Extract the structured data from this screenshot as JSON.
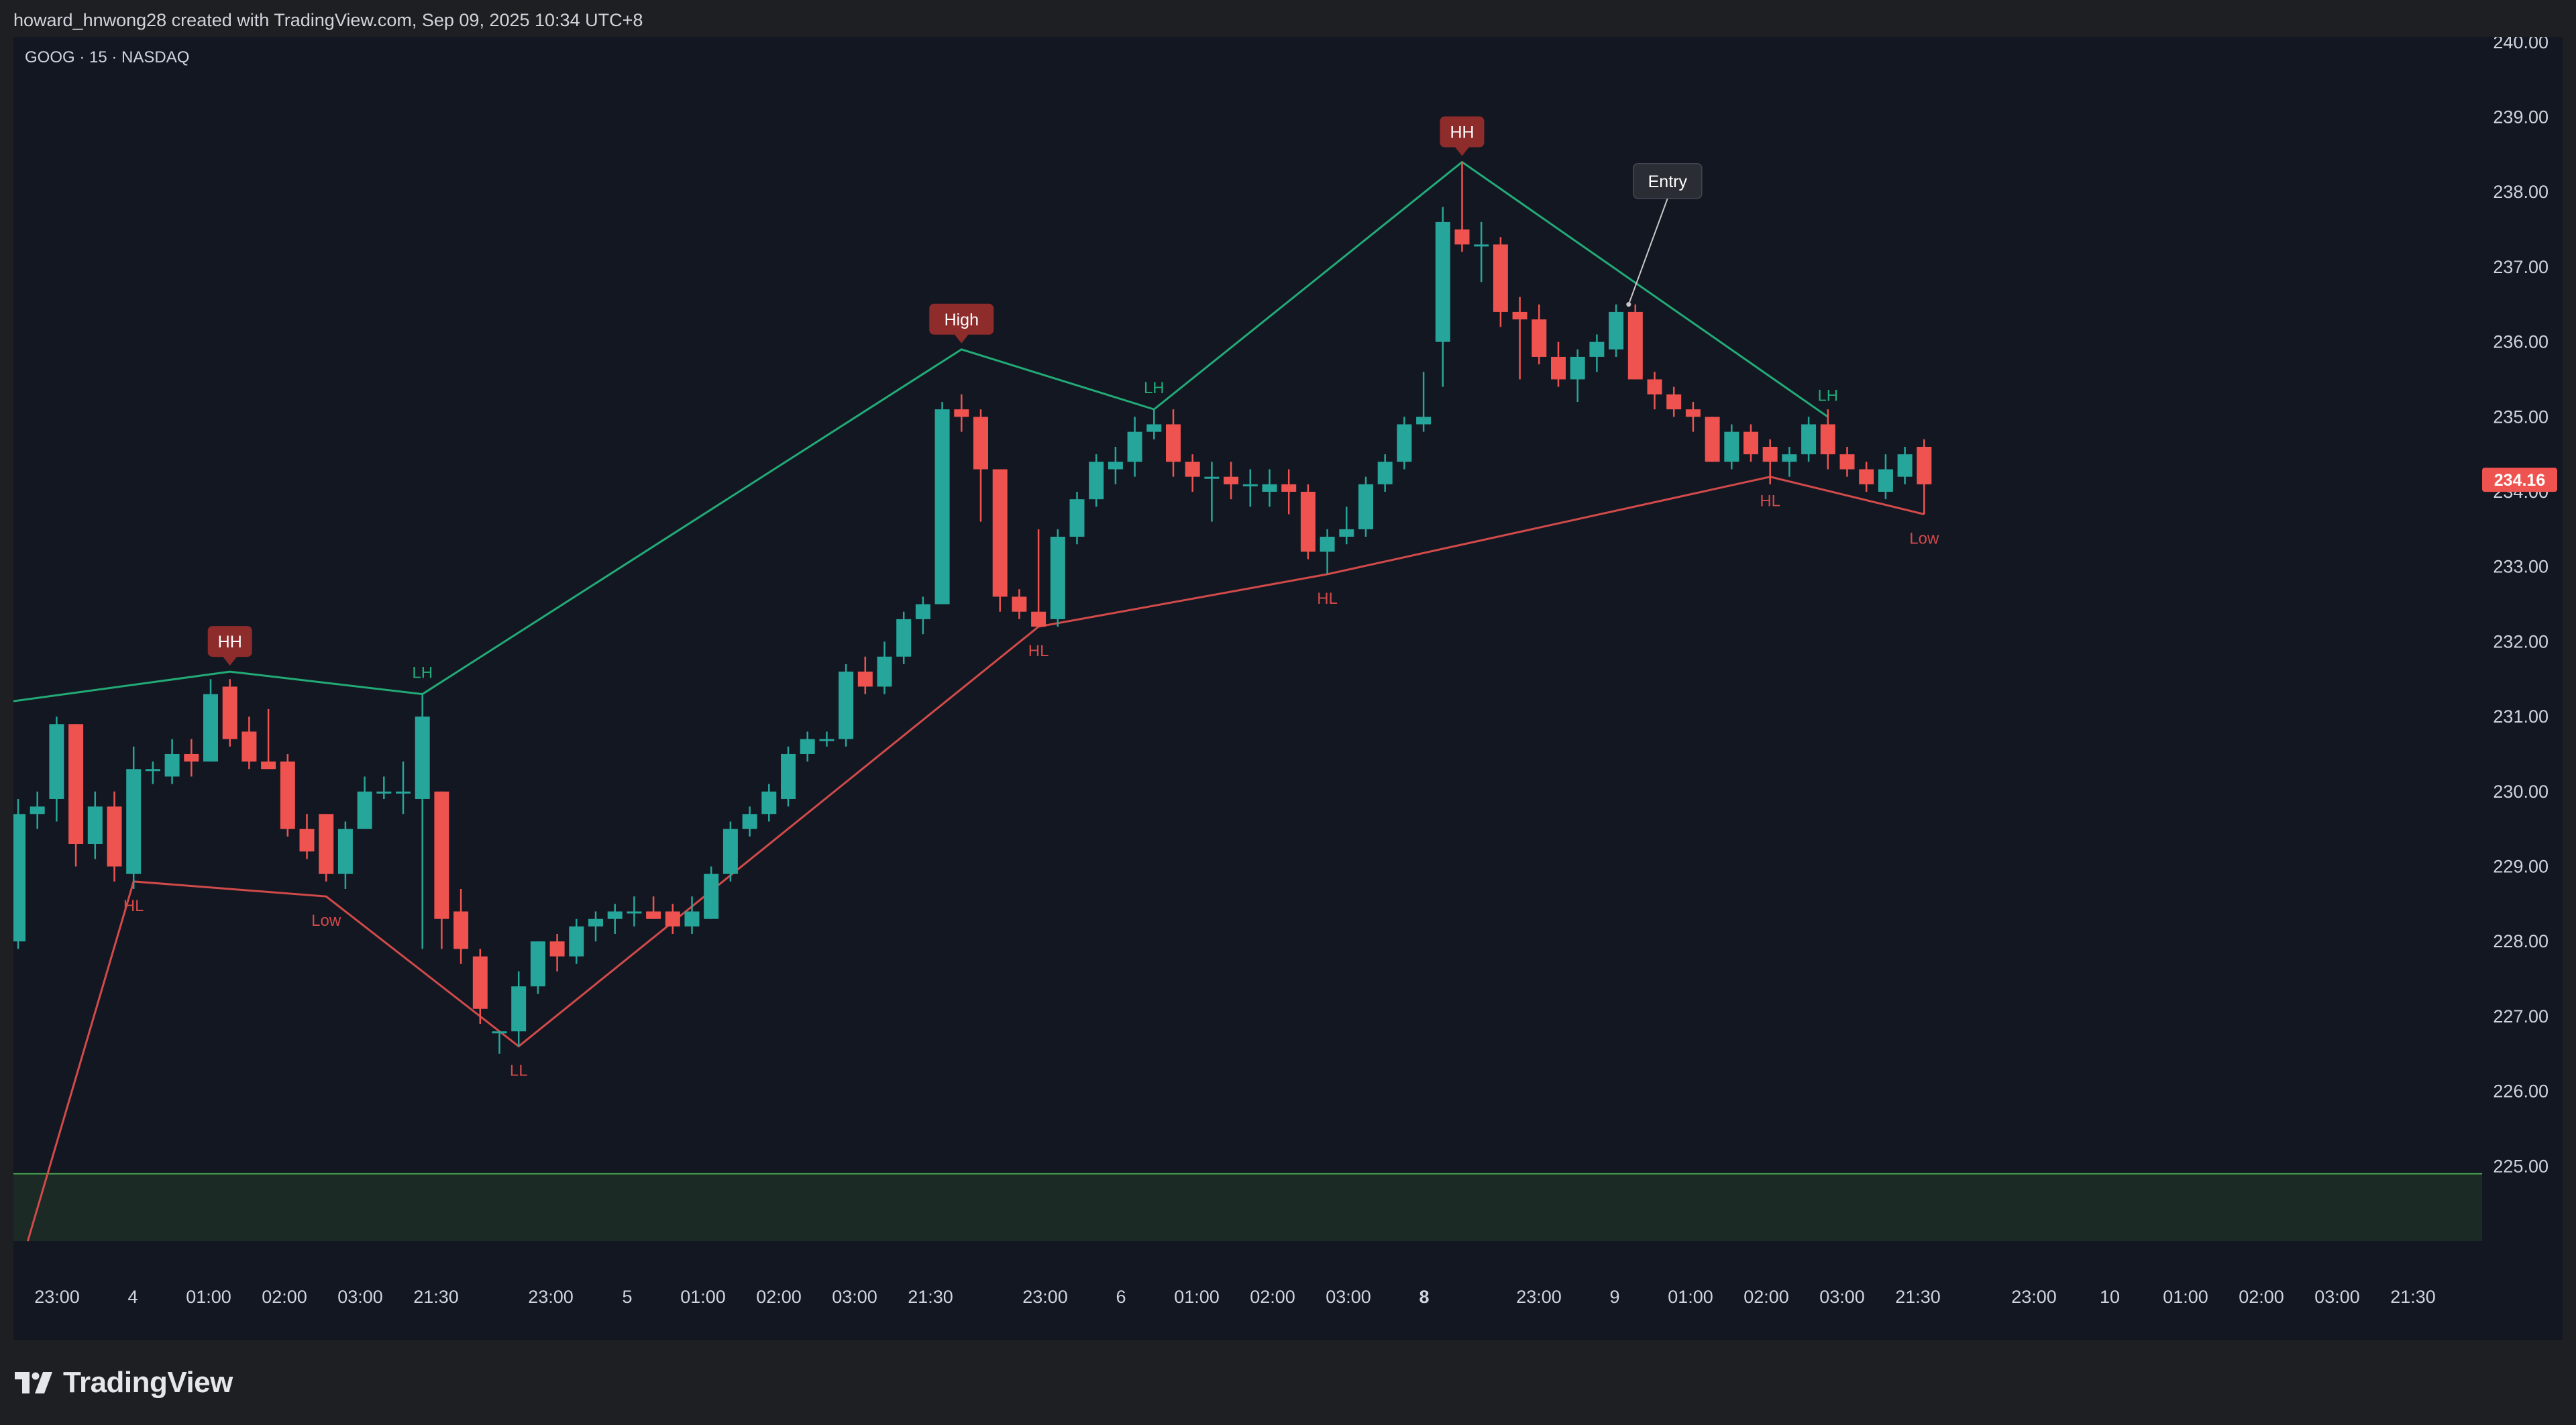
{
  "header": {
    "attribution": "howard_hnwong28 created with TradingView.com, Sep 09, 2025 10:34 UTC+8"
  },
  "symbol": {
    "label": "GOOG · 15 · NASDAQ"
  },
  "footer": {
    "brand": "TradingView",
    "logo_icon": "tradingview-logo-icon"
  },
  "colors": {
    "background": "#131722",
    "frame": "#1e1f22",
    "up": "#26a69a",
    "down": "#ef5350",
    "swing_high_line": "#22ab76",
    "swing_low_line": "#d24a4a",
    "flag": "#8e2b2b",
    "zone_fill": "#1b2a24",
    "zone_line": "#4caf50",
    "text": "#d1d4dc"
  },
  "price_axis": {
    "labels": [
      "240.00",
      "239.00",
      "238.00",
      "237.00",
      "236.00",
      "235.00",
      "234.00",
      "233.00",
      "232.00",
      "231.00",
      "230.00",
      "229.00",
      "228.00",
      "227.00",
      "226.00",
      "225.00"
    ],
    "last_price": "234.16"
  },
  "time_axis": {
    "labels": [
      "23:00",
      "4",
      "01:00",
      "02:00",
      "03:00",
      "21:30",
      "23:00",
      "5",
      "01:00",
      "02:00",
      "03:00",
      "21:30",
      "23:00",
      "6",
      "01:00",
      "02:00",
      "03:00",
      "8",
      "23:00",
      "9",
      "01:00",
      "02:00",
      "03:00",
      "21:30",
      "23:00",
      "10",
      "01:00",
      "02:00",
      "03:00",
      "21:30"
    ],
    "bold": [
      "8"
    ]
  },
  "chart_data": {
    "type": "candlestick",
    "symbol": "GOOG",
    "interval": "15",
    "exchange": "NASDAQ",
    "ylim": [
      224.0,
      240.8
    ],
    "candles": [
      {
        "o": 228.0,
        "h": 229.9,
        "l": 227.9,
        "c": 229.7
      },
      {
        "o": 229.7,
        "h": 230.0,
        "l": 229.5,
        "c": 229.8
      },
      {
        "o": 229.9,
        "h": 231.0,
        "l": 229.6,
        "c": 230.9
      },
      {
        "o": 230.9,
        "h": 230.9,
        "l": 229.0,
        "c": 229.3
      },
      {
        "o": 229.3,
        "h": 230.0,
        "l": 229.1,
        "c": 229.8
      },
      {
        "o": 229.8,
        "h": 230.0,
        "l": 228.8,
        "c": 229.0
      },
      {
        "o": 228.9,
        "h": 230.6,
        "l": 228.7,
        "c": 230.3
      },
      {
        "o": 230.3,
        "h": 230.4,
        "l": 230.1,
        "c": 230.3
      },
      {
        "o": 230.2,
        "h": 230.7,
        "l": 230.1,
        "c": 230.5
      },
      {
        "o": 230.5,
        "h": 230.7,
        "l": 230.2,
        "c": 230.4
      },
      {
        "o": 230.4,
        "h": 231.5,
        "l": 230.4,
        "c": 231.3
      },
      {
        "o": 231.4,
        "h": 231.5,
        "l": 230.6,
        "c": 230.7
      },
      {
        "o": 230.8,
        "h": 231.0,
        "l": 230.3,
        "c": 230.4
      },
      {
        "o": 230.4,
        "h": 231.1,
        "l": 230.3,
        "c": 230.3
      },
      {
        "o": 230.4,
        "h": 230.5,
        "l": 229.4,
        "c": 229.5
      },
      {
        "o": 229.5,
        "h": 229.7,
        "l": 229.1,
        "c": 229.2
      },
      {
        "o": 229.7,
        "h": 229.7,
        "l": 228.8,
        "c": 228.9
      },
      {
        "o": 228.9,
        "h": 229.6,
        "l": 228.7,
        "c": 229.5
      },
      {
        "o": 229.5,
        "h": 230.2,
        "l": 229.5,
        "c": 230.0
      },
      {
        "o": 230.0,
        "h": 230.2,
        "l": 229.9,
        "c": 230.0
      },
      {
        "o": 230.0,
        "h": 230.4,
        "l": 229.7,
        "c": 230.0
      },
      {
        "o": 229.9,
        "h": 231.3,
        "l": 227.9,
        "c": 231.0
      },
      {
        "o": 230.0,
        "h": 230.0,
        "l": 227.9,
        "c": 228.3
      },
      {
        "o": 228.4,
        "h": 228.7,
        "l": 227.7,
        "c": 227.9
      },
      {
        "o": 227.8,
        "h": 227.9,
        "l": 226.9,
        "c": 227.1
      },
      {
        "o": 226.8,
        "h": 226.8,
        "l": 226.5,
        "c": 226.8
      },
      {
        "o": 226.8,
        "h": 227.6,
        "l": 226.6,
        "c": 227.4
      },
      {
        "o": 227.4,
        "h": 228.0,
        "l": 227.3,
        "c": 228.0
      },
      {
        "o": 228.0,
        "h": 228.1,
        "l": 227.6,
        "c": 227.8
      },
      {
        "o": 227.8,
        "h": 228.3,
        "l": 227.7,
        "c": 228.2
      },
      {
        "o": 228.2,
        "h": 228.4,
        "l": 228.0,
        "c": 228.3
      },
      {
        "o": 228.3,
        "h": 228.5,
        "l": 228.1,
        "c": 228.4
      },
      {
        "o": 228.4,
        "h": 228.6,
        "l": 228.2,
        "c": 228.4
      },
      {
        "o": 228.4,
        "h": 228.6,
        "l": 228.3,
        "c": 228.3
      },
      {
        "o": 228.4,
        "h": 228.5,
        "l": 228.1,
        "c": 228.2
      },
      {
        "o": 228.2,
        "h": 228.6,
        "l": 228.1,
        "c": 228.4
      },
      {
        "o": 228.3,
        "h": 229.0,
        "l": 228.3,
        "c": 228.9
      },
      {
        "o": 228.9,
        "h": 229.6,
        "l": 228.8,
        "c": 229.5
      },
      {
        "o": 229.5,
        "h": 229.8,
        "l": 229.4,
        "c": 229.7
      },
      {
        "o": 229.7,
        "h": 230.1,
        "l": 229.6,
        "c": 230.0
      },
      {
        "o": 229.9,
        "h": 230.6,
        "l": 229.8,
        "c": 230.5
      },
      {
        "o": 230.5,
        "h": 230.8,
        "l": 230.4,
        "c": 230.7
      },
      {
        "o": 230.7,
        "h": 230.8,
        "l": 230.6,
        "c": 230.7
      },
      {
        "o": 230.7,
        "h": 231.7,
        "l": 230.6,
        "c": 231.6
      },
      {
        "o": 231.6,
        "h": 231.8,
        "l": 231.3,
        "c": 231.4
      },
      {
        "o": 231.4,
        "h": 232.0,
        "l": 231.3,
        "c": 231.8
      },
      {
        "o": 231.8,
        "h": 232.4,
        "l": 231.7,
        "c": 232.3
      },
      {
        "o": 232.3,
        "h": 232.6,
        "l": 232.1,
        "c": 232.5
      },
      {
        "o": 232.5,
        "h": 235.2,
        "l": 232.5,
        "c": 235.1
      },
      {
        "o": 235.1,
        "h": 235.3,
        "l": 234.8,
        "c": 235.0
      },
      {
        "o": 235.0,
        "h": 235.1,
        "l": 233.6,
        "c": 234.3
      },
      {
        "o": 234.3,
        "h": 234.3,
        "l": 232.4,
        "c": 232.6
      },
      {
        "o": 232.6,
        "h": 232.7,
        "l": 232.3,
        "c": 232.4
      },
      {
        "o": 232.4,
        "h": 233.5,
        "l": 232.3,
        "c": 232.2
      },
      {
        "o": 232.3,
        "h": 233.5,
        "l": 232.2,
        "c": 233.4
      },
      {
        "o": 233.4,
        "h": 234.0,
        "l": 233.3,
        "c": 233.9
      },
      {
        "o": 233.9,
        "h": 234.5,
        "l": 233.8,
        "c": 234.4
      },
      {
        "o": 234.3,
        "h": 234.6,
        "l": 234.1,
        "c": 234.4
      },
      {
        "o": 234.4,
        "h": 235.0,
        "l": 234.2,
        "c": 234.8
      },
      {
        "o": 234.8,
        "h": 235.1,
        "l": 234.7,
        "c": 234.9
      },
      {
        "o": 234.9,
        "h": 235.1,
        "l": 234.2,
        "c": 234.4
      },
      {
        "o": 234.4,
        "h": 234.5,
        "l": 234.0,
        "c": 234.2
      },
      {
        "o": 234.2,
        "h": 234.4,
        "l": 233.6,
        "c": 234.2
      },
      {
        "o": 234.2,
        "h": 234.4,
        "l": 233.9,
        "c": 234.1
      },
      {
        "o": 234.1,
        "h": 234.3,
        "l": 233.8,
        "c": 234.1
      },
      {
        "o": 234.0,
        "h": 234.3,
        "l": 233.8,
        "c": 234.1
      },
      {
        "o": 234.1,
        "h": 234.3,
        "l": 233.7,
        "c": 234.0
      },
      {
        "o": 234.0,
        "h": 234.1,
        "l": 233.1,
        "c": 233.2
      },
      {
        "o": 233.2,
        "h": 233.5,
        "l": 232.9,
        "c": 233.4
      },
      {
        "o": 233.4,
        "h": 233.8,
        "l": 233.3,
        "c": 233.5
      },
      {
        "o": 233.5,
        "h": 234.2,
        "l": 233.4,
        "c": 234.1
      },
      {
        "o": 234.1,
        "h": 234.5,
        "l": 234.0,
        "c": 234.4
      },
      {
        "o": 234.4,
        "h": 235.0,
        "l": 234.3,
        "c": 234.9
      },
      {
        "o": 234.9,
        "h": 235.6,
        "l": 234.8,
        "c": 235.0
      },
      {
        "o": 236.0,
        "h": 237.8,
        "l": 235.4,
        "c": 237.6
      },
      {
        "o": 237.5,
        "h": 238.4,
        "l": 237.2,
        "c": 237.3
      },
      {
        "o": 237.3,
        "h": 237.6,
        "l": 236.8,
        "c": 237.3
      },
      {
        "o": 237.3,
        "h": 237.4,
        "l": 236.2,
        "c": 236.4
      },
      {
        "o": 236.4,
        "h": 236.6,
        "l": 235.5,
        "c": 236.3
      },
      {
        "o": 236.3,
        "h": 236.5,
        "l": 235.7,
        "c": 235.8
      },
      {
        "o": 235.8,
        "h": 236.0,
        "l": 235.4,
        "c": 235.5
      },
      {
        "o": 235.5,
        "h": 235.9,
        "l": 235.2,
        "c": 235.8
      },
      {
        "o": 235.8,
        "h": 236.1,
        "l": 235.6,
        "c": 236.0
      },
      {
        "o": 235.9,
        "h": 236.5,
        "l": 235.8,
        "c": 236.4
      },
      {
        "o": 236.4,
        "h": 236.5,
        "l": 235.5,
        "c": 235.5
      },
      {
        "o": 235.5,
        "h": 235.6,
        "l": 235.1,
        "c": 235.3
      },
      {
        "o": 235.3,
        "h": 235.4,
        "l": 235.0,
        "c": 235.1
      },
      {
        "o": 235.1,
        "h": 235.2,
        "l": 234.8,
        "c": 235.0
      },
      {
        "o": 235.0,
        "h": 235.0,
        "l": 234.4,
        "c": 234.4
      },
      {
        "o": 234.4,
        "h": 234.9,
        "l": 234.3,
        "c": 234.8
      },
      {
        "o": 234.8,
        "h": 234.9,
        "l": 234.4,
        "c": 234.5
      },
      {
        "o": 234.6,
        "h": 234.7,
        "l": 234.1,
        "c": 234.4
      },
      {
        "o": 234.4,
        "h": 234.6,
        "l": 234.2,
        "c": 234.5
      },
      {
        "o": 234.5,
        "h": 235.0,
        "l": 234.4,
        "c": 234.9
      },
      {
        "o": 234.9,
        "h": 235.1,
        "l": 234.3,
        "c": 234.5
      },
      {
        "o": 234.5,
        "h": 234.6,
        "l": 234.2,
        "c": 234.3
      },
      {
        "o": 234.3,
        "h": 234.4,
        "l": 234.0,
        "c": 234.1
      },
      {
        "o": 234.0,
        "h": 234.5,
        "l": 233.9,
        "c": 234.3
      },
      {
        "o": 234.2,
        "h": 234.6,
        "l": 234.1,
        "c": 234.5
      },
      {
        "o": 234.6,
        "h": 234.7,
        "l": 233.7,
        "c": 234.1
      }
    ],
    "swing_high_line": [
      {
        "bar": -0.4,
        "price": 231.2,
        "label": ""
      },
      {
        "bar": 11,
        "price": 231.6,
        "label": "HH"
      },
      {
        "bar": 21,
        "price": 231.3,
        "label": "LH"
      },
      {
        "bar": 49,
        "price": 235.9,
        "label": "High"
      },
      {
        "bar": 59,
        "price": 235.1,
        "label": "LH"
      },
      {
        "bar": 75,
        "price": 238.4,
        "label": "HH"
      },
      {
        "bar": 94,
        "price": 235.0,
        "label": "LH"
      }
    ],
    "swing_low_line": [
      {
        "bar": 0.5,
        "price": 224.0,
        "label": ""
      },
      {
        "bar": 6,
        "price": 228.8,
        "label": "HL"
      },
      {
        "bar": 16,
        "price": 228.6,
        "label": "Low"
      },
      {
        "bar": 26,
        "price": 226.6,
        "label": "LL"
      },
      {
        "bar": 53,
        "price": 232.2,
        "label": "HL"
      },
      {
        "bar": 68,
        "price": 232.9,
        "label": "HL"
      },
      {
        "bar": 91,
        "price": 234.2,
        "label": "HL"
      },
      {
        "bar": 99,
        "price": 233.7,
        "label": "Low"
      }
    ],
    "flag_labels": [
      "High",
      "HH"
    ],
    "annotation": {
      "text": "Entry",
      "bar": 84,
      "price": 236.5
    },
    "demand_zone": {
      "top": 224.9,
      "bottom": 224.0
    },
    "last_price": 234.16
  }
}
